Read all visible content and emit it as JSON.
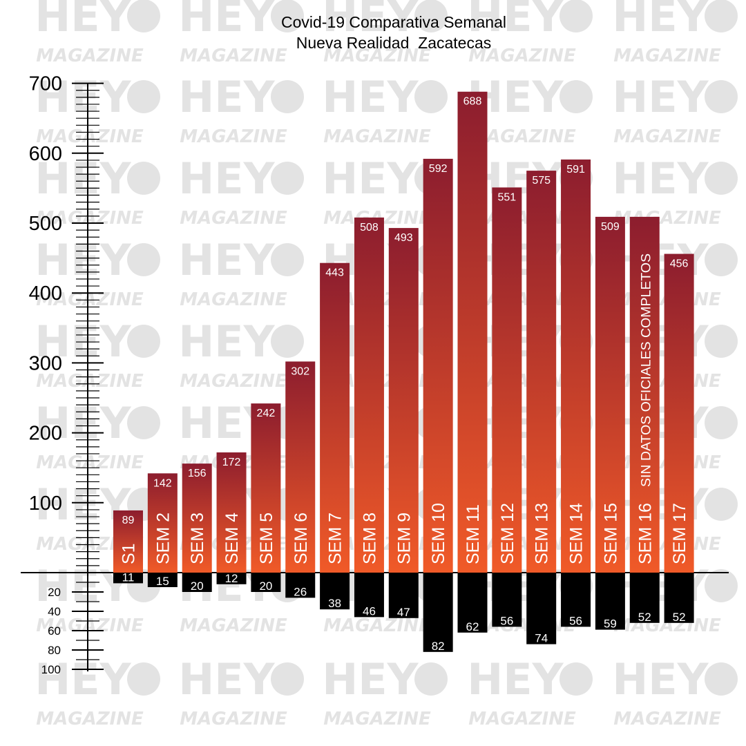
{
  "chart_data": {
    "type": "bar",
    "title": "Covid-19 Comparativa Semanal",
    "subtitle": "Nueva Realidad  Zacatecas",
    "categories": [
      "S1",
      "SEM 2",
      "SEM 3",
      "SEM 4",
      "SEM 5",
      "SEM 6",
      "SEM 7",
      "SEM 8",
      "SEM 9",
      "SEM 10",
      "SEM 11",
      "SEM 12",
      "SEM 13",
      "SEM 14",
      "SEM 15",
      "SEM 16",
      "SEM 17"
    ],
    "series": [
      {
        "values": [
          89,
          142,
          156,
          172,
          242,
          302,
          443,
          508,
          493,
          592,
          688,
          551,
          575,
          591,
          509,
          509,
          456
        ]
      },
      {
        "values": [
          11,
          15,
          20,
          12,
          20,
          26,
          38,
          46,
          47,
          82,
          62,
          56,
          74,
          56,
          59,
          52,
          52
        ]
      }
    ],
    "value_labels_top": [
      "89",
      "142",
      "156",
      "172",
      "242",
      "302",
      "443",
      "508",
      "493",
      "592",
      "688",
      "551",
      "575",
      "591",
      "509",
      "",
      "456"
    ],
    "note_label": "SIN DATOS OFICIALES COMPLETOS",
    "y_axis_top": {
      "range": [
        0,
        700
      ],
      "ticks": [
        "700",
        "600",
        "500",
        "400",
        "300",
        "200",
        "100"
      ]
    },
    "y_axis_bottom": {
      "range": [
        0,
        100
      ],
      "ticks": [
        "20",
        "40",
        "60",
        "80",
        "100"
      ]
    },
    "grid": false,
    "legend": "none"
  },
  "colors": {
    "bar_top": "#8c1d2e",
    "bar_bottom": "#f05a28",
    "negative_bar": "#000000",
    "axis": "#000000",
    "label_text": "#ffffff",
    "watermark": "#e3e3e3"
  },
  "watermark": {
    "line1": "HEY",
    "line2": "MAGAZINE"
  }
}
